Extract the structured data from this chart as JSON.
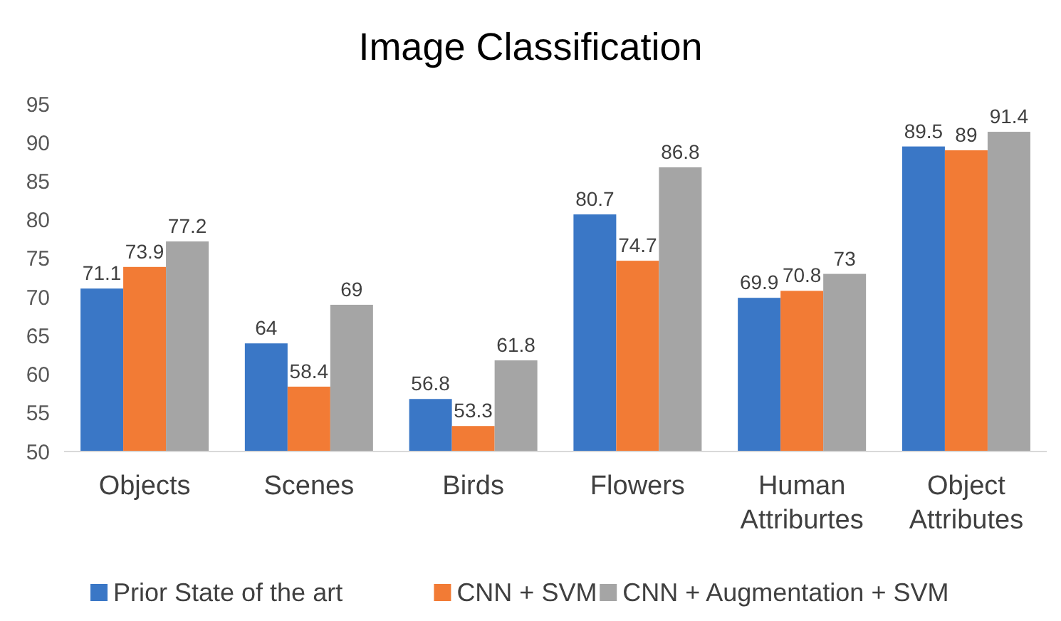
{
  "chart_data": {
    "type": "bar",
    "title": "Image Classification",
    "categories": [
      "Objects",
      "Scenes",
      "Birds",
      "Flowers",
      "Human Attriburtes",
      "Object Attributes"
    ],
    "series": [
      {
        "name": "Prior State of the art",
        "color": "#3a77c6",
        "values": [
          71.1,
          64,
          56.8,
          80.7,
          69.9,
          89.5
        ]
      },
      {
        "name": "CNN + SVM",
        "color": "#f27b35",
        "values": [
          73.9,
          58.4,
          53.3,
          74.7,
          70.8,
          89
        ]
      },
      {
        "name": "CNN + Augmentation + SVM",
        "color": "#a5a5a5",
        "values": [
          77.2,
          69,
          61.8,
          86.8,
          73,
          91.4
        ]
      }
    ],
    "ylim": [
      50,
      95
    ],
    "yticks": [
      50,
      55,
      60,
      65,
      70,
      75,
      80,
      85,
      90,
      95
    ],
    "grid": false,
    "data_labels": true,
    "legend": "bottom"
  }
}
